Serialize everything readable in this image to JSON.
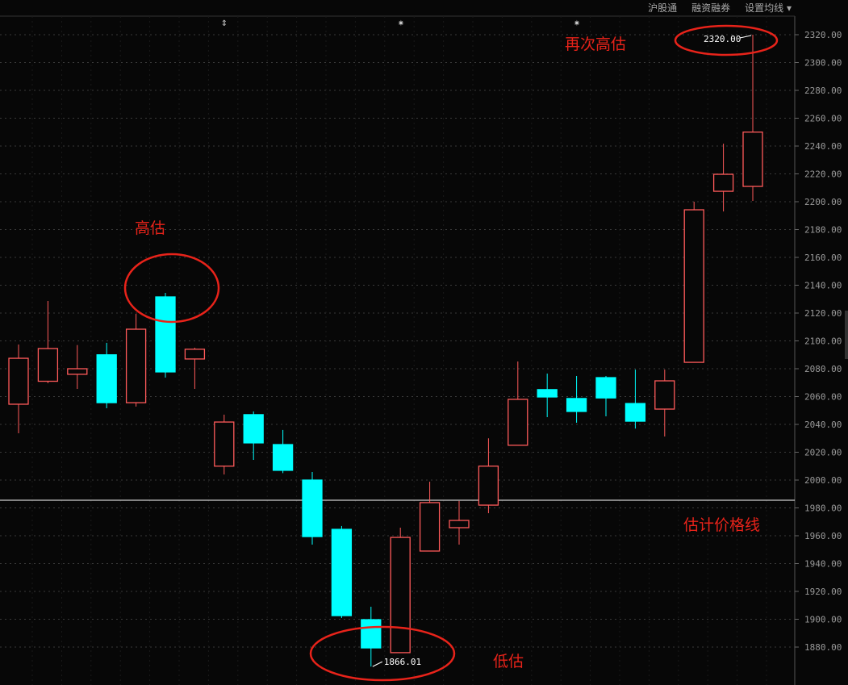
{
  "toolbar": {
    "items": [
      "沪股通",
      "融资融券",
      "设置均线 ▾"
    ]
  },
  "colors": {
    "up": "#ff5a5a",
    "down": "#00ffff",
    "grid": "#3a3a3a",
    "annotation": "#e8231a",
    "price_line": "#ffffff",
    "background": "#070707"
  },
  "annotations": {
    "high_again": "再次高估",
    "high": "高估",
    "price_line": "估计价格线",
    "low": "低估"
  },
  "chart_data": {
    "type": "candlestick",
    "ylim": [
      1860,
      2330
    ],
    "yticks": [
      1880,
      1900,
      1920,
      1940,
      1960,
      1980,
      2000,
      2020,
      2040,
      2060,
      2080,
      2100,
      2120,
      2140,
      2160,
      2180,
      2200,
      2220,
      2240,
      2260,
      2280,
      2300,
      2320
    ],
    "grid": true,
    "max_label": "2320.00",
    "min_label": "1866.01",
    "price_line": 1985.5,
    "candles": [
      {
        "o": 2054.5,
        "h": 2097.4,
        "l": 2033.6,
        "c": 2087.5
      },
      {
        "o": 2071,
        "h": 2128.7,
        "l": 2069.6,
        "c": 2094.5
      },
      {
        "o": 2076,
        "h": 2097,
        "l": 2065.5,
        "c": 2080
      },
      {
        "o": 2090,
        "h": 2098.6,
        "l": 2051.6,
        "c": 2055.6
      },
      {
        "o": 2055.6,
        "h": 2119.4,
        "l": 2052.8,
        "c": 2108.4
      },
      {
        "o": 2131.6,
        "h": 2134.5,
        "l": 2073.6,
        "c": 2077.7
      },
      {
        "o": 2087,
        "h": 2095.1,
        "l": 2065.5,
        "c": 2094
      },
      {
        "o": 2010,
        "h": 2047,
        "l": 2004,
        "c": 2041.7
      },
      {
        "o": 2047,
        "h": 2049.3,
        "l": 2014.5,
        "c": 2026.7
      },
      {
        "o": 2025.5,
        "h": 2036,
        "l": 2005,
        "c": 2007
      },
      {
        "o": 2000,
        "h": 2005.8,
        "l": 1953.6,
        "c": 1959.4
      },
      {
        "o": 1964.6,
        "h": 1967,
        "l": 1900.9,
        "c": 1902.6
      },
      {
        "o": 1899.7,
        "h": 1909,
        "l": 1866.01,
        "c": 1879.4
      },
      {
        "o": 1876,
        "h": 1965.8,
        "l": 1876,
        "c": 1958.8
      },
      {
        "o": 1949,
        "h": 1998.8,
        "l": 1949,
        "c": 1983.8
      },
      {
        "o": 1965.8,
        "h": 1985,
        "l": 1953.6,
        "c": 1971
      },
      {
        "o": 1982,
        "h": 2030,
        "l": 1976.2,
        "c": 2010
      },
      {
        "o": 2025,
        "h": 2085.2,
        "l": 2025,
        "c": 2058
      },
      {
        "o": 2065,
        "h": 2076.5,
        "l": 2045.2,
        "c": 2059.7
      },
      {
        "o": 2058.6,
        "h": 2074.8,
        "l": 2041.2,
        "c": 2049.3
      },
      {
        "o": 2073.6,
        "h": 2074.8,
        "l": 2045.8,
        "c": 2059
      },
      {
        "o": 2055,
        "h": 2079.4,
        "l": 2037,
        "c": 2042.3
      },
      {
        "o": 2051,
        "h": 2079.4,
        "l": 2031.3,
        "c": 2071.3
      },
      {
        "o": 2084.6,
        "h": 2200,
        "l": 2084.6,
        "c": 2194.2
      },
      {
        "o": 2207.5,
        "h": 2241.7,
        "l": 2193,
        "c": 2219.7
      },
      {
        "o": 2211,
        "h": 2320,
        "l": 2200.6,
        "c": 2250
      }
    ]
  }
}
